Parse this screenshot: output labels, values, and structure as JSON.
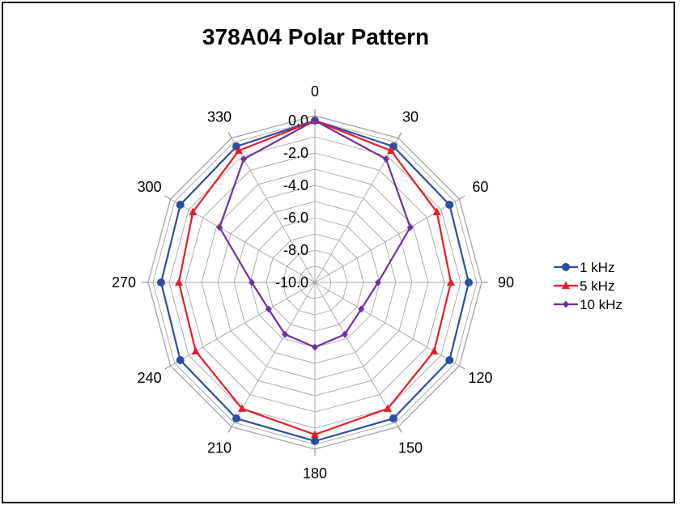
{
  "chart_data": {
    "type": "radar",
    "title": "378A04 Polar Pattern",
    "angles": [
      "0",
      "30",
      "60",
      "90",
      "120",
      "150",
      "180",
      "210",
      "240",
      "270",
      "300",
      "330"
    ],
    "radial_ticks": [
      "0.0",
      "-2.0",
      "-4.0",
      "-6.0",
      "-8.0",
      "-10.0"
    ],
    "rlim": [
      -10,
      0
    ],
    "rlim_outer": [
      -10,
      0.3
    ],
    "grid": true,
    "legend_position": "right",
    "series": [
      {
        "name": "1 kHz",
        "color": "#2E4DA0",
        "marker": "circle",
        "values": [
          0,
          -0.3,
          -0.4,
          -0.5,
          -0.4,
          -0.3,
          -0.2,
          -0.3,
          -0.4,
          -0.5,
          -0.4,
          -0.3
        ]
      },
      {
        "name": "5 kHz",
        "color": "#E41E26",
        "marker": "triangle",
        "values": [
          0,
          -0.6,
          -1.3,
          -1.6,
          -1.5,
          -1.0,
          -0.6,
          -1.0,
          -1.5,
          -1.6,
          -1.3,
          -0.6
        ]
      },
      {
        "name": "10 kHz",
        "color": "#7030A0",
        "marker": "diamond",
        "values": [
          0,
          -1.2,
          -3.2,
          -6.1,
          -6.7,
          -6.3,
          -6.0,
          -6.3,
          -6.7,
          -6.1,
          -3.2,
          -1.2
        ]
      }
    ]
  }
}
